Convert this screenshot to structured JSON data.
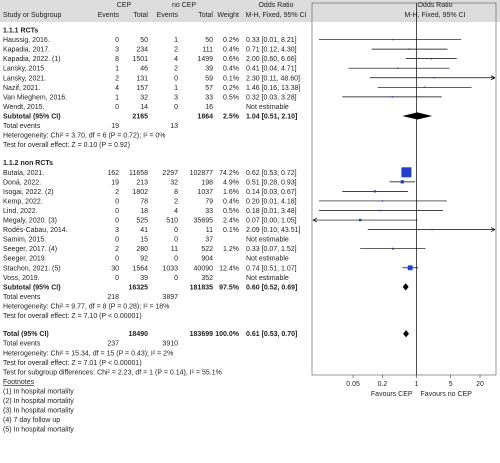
{
  "header": {
    "col_study": "Study or Subgroup",
    "col_cep": "CEP",
    "col_nocep": "no CEP",
    "col_events": "Events",
    "col_total": "Total",
    "col_weight": "Weight",
    "col_or": "Odds Ratio",
    "col_or_sub": "M-H, Fixed, 95% CI"
  },
  "groups": [
    {
      "title": "1.1.1 RCTs",
      "studies": [
        {
          "name": "Haussig, 2016.",
          "cep_events": "0",
          "cep_total": "50",
          "nocep_events": "1",
          "nocep_total": "50",
          "weight": "0.2%",
          "ci_text": "0.33 [0.01, 8.21]",
          "or": 0.33,
          "lo": 0.01,
          "hi": 8.21
        },
        {
          "name": "Kapadia, 2017.",
          "cep_events": "3",
          "cep_total": "234",
          "nocep_events": "2",
          "nocep_total": "111",
          "weight": "0.4%",
          "ci_text": "0.71 [0.12, 4.30]",
          "or": 0.71,
          "lo": 0.12,
          "hi": 4.3
        },
        {
          "name": "Kapadia, 2022. (1)",
          "cep_events": "8",
          "cep_total": "1501",
          "nocep_events": "4",
          "nocep_total": "1499",
          "weight": "0.6%",
          "ci_text": "2.00 [0.60, 6.66]",
          "or": 2.0,
          "lo": 0.6,
          "hi": 6.66
        },
        {
          "name": "Lansky, 2015",
          "cep_events": "1",
          "cep_total": "46",
          "nocep_events": "2",
          "nocep_total": "39",
          "weight": "0.4%",
          "ci_text": "0.41 [0.04, 4.71]",
          "or": 0.41,
          "lo": 0.04,
          "hi": 4.71
        },
        {
          "name": "Lansky, 2021.",
          "cep_events": "2",
          "cep_total": "131",
          "nocep_events": "0",
          "nocep_total": "59",
          "weight": "0.1%",
          "ci_text": "2.30 [0.11, 48.60]",
          "or": 2.3,
          "lo": 0.11,
          "hi": 48.6
        },
        {
          "name": "Nazif, 2021.",
          "cep_events": "4",
          "cep_total": "157",
          "nocep_events": "1",
          "nocep_total": "57",
          "weight": "0.2%",
          "ci_text": "1.46 [0.16, 13.38]",
          "or": 1.46,
          "lo": 0.16,
          "hi": 13.38
        },
        {
          "name": "Van Mieghem, 2016.",
          "cep_events": "1",
          "cep_total": "32",
          "nocep_events": "3",
          "nocep_total": "33",
          "weight": "0.5%",
          "ci_text": "0.32 [0.03, 3.28]",
          "or": 0.32,
          "lo": 0.03,
          "hi": 3.28
        },
        {
          "name": "Wendt, 2015.",
          "cep_events": "0",
          "cep_total": "14",
          "nocep_events": "0",
          "nocep_total": "16",
          "weight": "",
          "ci_text": "Not estimable",
          "or": null,
          "lo": null,
          "hi": null
        }
      ],
      "subtotal": {
        "label": "Subtotal (95% CI)",
        "cep_total": "2165",
        "nocep_total": "1864",
        "weight": "2.5%",
        "ci_text": "1.04 [0.51, 2.10]",
        "or": 1.04,
        "lo": 0.51,
        "hi": 2.1
      },
      "total_events": {
        "label": "Total events",
        "cep": "19",
        "nocep": "13"
      },
      "heterogeneity": "Heterogeneity: Chi² = 3.70, df = 6 (P = 0.72); I² = 0%",
      "overall_effect": "Test for overall effect: Z = 0.10 (P = 0.92)"
    },
    {
      "title": "1.1.2 non RCTs",
      "studies": [
        {
          "name": "Butala, 2021.",
          "cep_events": "162",
          "cep_total": "11658",
          "nocep_events": "2297",
          "nocep_total": "102877",
          "weight": "74.2%",
          "ci_text": "0.62 [0.53, 0.72]",
          "or": 0.62,
          "lo": 0.53,
          "hi": 0.72
        },
        {
          "name": "Doná, 2022.",
          "cep_events": "19",
          "cep_total": "213",
          "nocep_events": "32",
          "nocep_total": "198",
          "weight": "4.9%",
          "ci_text": "0.51 [0.28, 0.93]",
          "or": 0.51,
          "lo": 0.28,
          "hi": 0.93
        },
        {
          "name": "Isogai, 2022. (2)",
          "cep_events": "2",
          "cep_total": "1802",
          "nocep_events": "8",
          "nocep_total": "1037",
          "weight": "1.6%",
          "ci_text": "0.14 [0.03, 0.67]",
          "or": 0.14,
          "lo": 0.03,
          "hi": 0.67
        },
        {
          "name": "Kemp, 2022.",
          "cep_events": "0",
          "cep_total": "78",
          "nocep_events": "2",
          "nocep_total": "79",
          "weight": "0.4%",
          "ci_text": "0.20 [0.01, 4.18]",
          "or": 0.2,
          "lo": 0.01,
          "hi": 4.18
        },
        {
          "name": "Lind, 2022.",
          "cep_events": "0",
          "cep_total": "18",
          "nocep_events": "4",
          "nocep_total": "33",
          "weight": "0.5%",
          "ci_text": "0.18 [0.01, 3.48]",
          "or": 0.18,
          "lo": 0.01,
          "hi": 3.48
        },
        {
          "name": "Megaly, 2020. (3)",
          "cep_events": "0",
          "cep_total": "525",
          "nocep_events": "510",
          "nocep_total": "35695",
          "weight": "2.4%",
          "ci_text": "0.07 [0.00, 1.05]",
          "or": 0.07,
          "lo": 0.004,
          "hi": 1.05
        },
        {
          "name": "Rodés-Cabau, 2014.",
          "cep_events": "3",
          "cep_total": "41",
          "nocep_events": "0",
          "nocep_total": "11",
          "weight": "0.1%",
          "ci_text": "2.09 [0.10, 43.51]",
          "or": 2.09,
          "lo": 0.1,
          "hi": 43.51
        },
        {
          "name": "Samim, 2015.",
          "cep_events": "0",
          "cep_total": "15",
          "nocep_events": "0",
          "nocep_total": "37",
          "weight": "",
          "ci_text": "Not estimable",
          "or": null,
          "lo": null,
          "hi": null
        },
        {
          "name": "Seeger, 2017. (4)",
          "cep_events": "2",
          "cep_total": "280",
          "nocep_events": "11",
          "nocep_total": "522",
          "weight": "1.2%",
          "ci_text": "0.33 [0.07, 1.52]",
          "or": 0.33,
          "lo": 0.07,
          "hi": 1.52
        },
        {
          "name": "Seeger, 2019.",
          "cep_events": "0",
          "cep_total": "92",
          "nocep_events": "0",
          "nocep_total": "904",
          "weight": "",
          "ci_text": "Not estimable",
          "or": null,
          "lo": null,
          "hi": null
        },
        {
          "name": "Stachon, 2021. (5)",
          "cep_events": "30",
          "cep_total": "1564",
          "nocep_events": "1033",
          "nocep_total": "40090",
          "weight": "12.4%",
          "ci_text": "0.74 [0.51, 1.07]",
          "or": 0.74,
          "lo": 0.51,
          "hi": 1.07
        },
        {
          "name": "Voss, 2019.",
          "cep_events": "0",
          "cep_total": "39",
          "nocep_events": "0",
          "nocep_total": "352",
          "weight": "",
          "ci_text": "Not estimable",
          "or": null,
          "lo": null,
          "hi": null
        }
      ],
      "subtotal": {
        "label": "Subtotal (95% CI)",
        "cep_total": "16325",
        "nocep_total": "181835",
        "weight": "97.5%",
        "ci_text": "0.60 [0.52, 0.69]",
        "or": 0.6,
        "lo": 0.52,
        "hi": 0.69
      },
      "total_events": {
        "label": "Total events",
        "cep": "218",
        "nocep": "3897"
      },
      "heterogeneity": "Heterogeneity: Chi² = 9.77, df = 8 (P = 0.28); I² = 18%",
      "overall_effect": "Test for overall effect: Z = 7.10 (P < 0.00001)"
    }
  ],
  "total": {
    "label": "Total (95% CI)",
    "cep_total": "18490",
    "nocep_total": "183699",
    "weight": "100.0%",
    "ci_text": "0.61 [0.53, 0.70]",
    "or": 0.61,
    "lo": 0.53,
    "hi": 0.7,
    "events_label": "Total events",
    "events_cep": "237",
    "events_nocep": "3910",
    "heterogeneity": "Heterogeneity: Chi² = 15.34, df = 15 (P = 0.43); I² = 2%",
    "overall_effect": "Test for overall effect: Z = 7.01 (P < 0.00001)",
    "subgroup_diff": "Test for subgroup differences: Chi² = 2.23, df = 1 (P = 0.14), I² = 55.1%"
  },
  "footnotes": {
    "title": "Footnotes",
    "items": [
      "(1) In hospital mortality",
      "(2) In hospital mortality",
      "(3) In hospital mortality",
      "(4) 7 day follow up",
      "(5) In hospital mortality"
    ]
  },
  "chart_data": {
    "type": "forest",
    "x_scale": "log",
    "xlim": [
      0.01,
      40
    ],
    "xticks": [
      "0.05",
      "0.2",
      "1",
      "5",
      "20"
    ],
    "xtick_values": [
      0.05,
      0.2,
      1,
      5,
      20
    ],
    "favours_left": "Favours CEP",
    "favours_right": "Favours no CEP"
  },
  "colors": {
    "square": "#1f3fd1",
    "line": "#000000",
    "diamond": "#000000",
    "header_bg": "#dcdcdc"
  }
}
